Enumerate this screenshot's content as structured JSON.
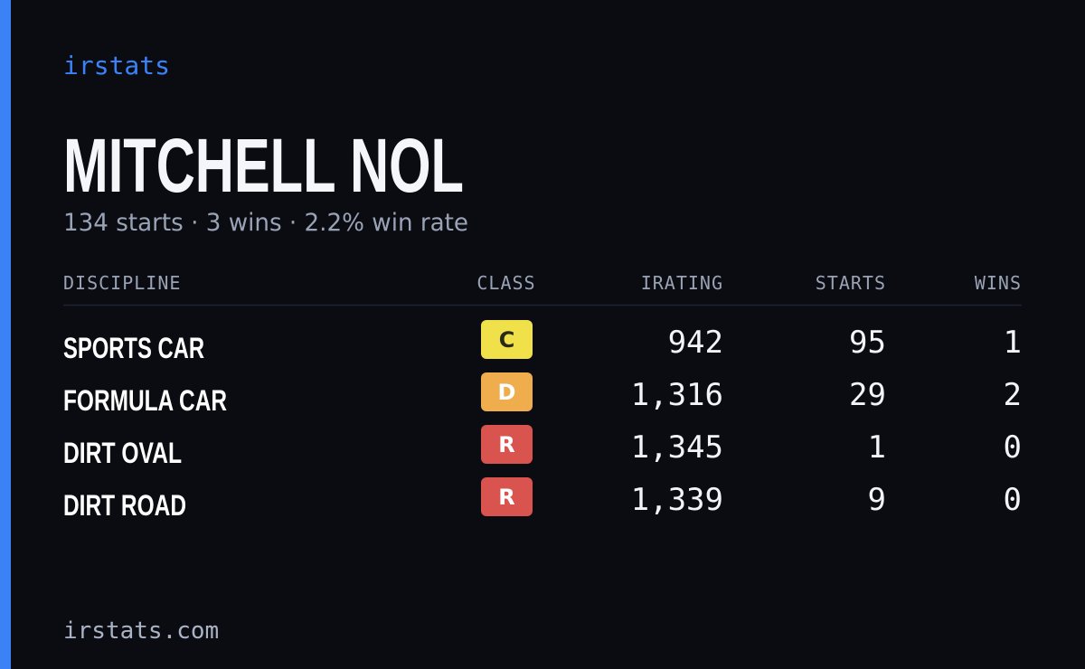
{
  "brand": "irstats",
  "driver": {
    "name": "MITCHELL NOL",
    "summary": "134 starts · 3 wins · 2.2% win rate"
  },
  "table": {
    "columns": [
      "DISCIPLINE",
      "CLASS",
      "IRATING",
      "STARTS",
      "WINS"
    ],
    "rows": [
      [
        "SPORTS CAR",
        "C",
        "942",
        "95",
        "1"
      ],
      [
        "FORMULA CAR",
        "D",
        "1,316",
        "29",
        "2"
      ],
      [
        "DIRT OVAL",
        "R",
        "1,345",
        "1",
        "0"
      ],
      [
        "DIRT ROAD",
        "R",
        "1,339",
        "9",
        "0"
      ]
    ]
  },
  "footer": {
    "url": "irstats.com"
  }
}
